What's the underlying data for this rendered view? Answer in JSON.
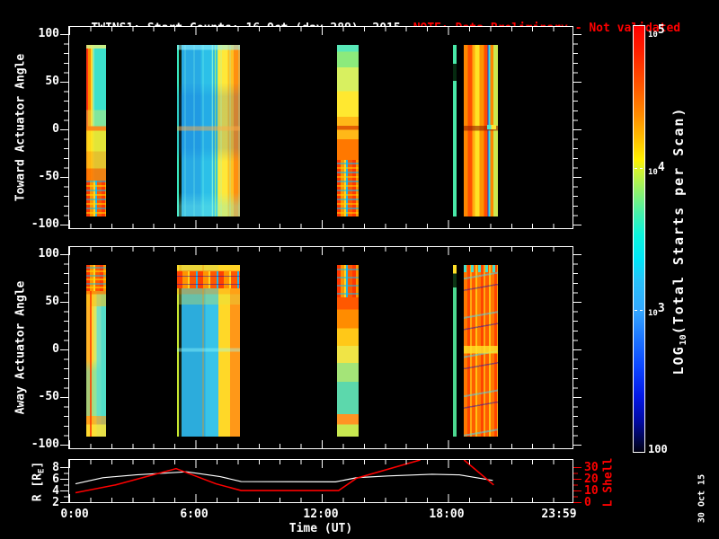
{
  "title": {
    "main": "TWINS1: Start Counts: 16 Oct (day 289), 2015",
    "note": "NOTE: Data Preliminary - Not validated"
  },
  "colors": {
    "background": "#000000",
    "foreground": "#ffffff",
    "note_red": "#ff0000",
    "r_line": "#ffffff",
    "lshell_line": "#ff0000"
  },
  "panels": {
    "toward": {
      "ylabel": "Toward Actuator Angle",
      "yticks": [
        "100",
        "50",
        "0",
        "-50",
        "-100"
      ]
    },
    "away": {
      "ylabel": "Away Actuator Angle",
      "yticks": [
        "100",
        "50",
        "0",
        "-50",
        "-100"
      ]
    },
    "orbit": {
      "left_label_pre": "R [R",
      "left_label_sub": "E",
      "left_label_post": "]",
      "left_ticks": [
        "8",
        "6",
        "4",
        "2"
      ],
      "right_label": "L Shell",
      "right_ticks": [
        "30",
        "20",
        "10",
        "0"
      ]
    }
  },
  "xaxis": {
    "label": "Time (UT)",
    "ticks": [
      "0:00",
      "6:00",
      "12:00",
      "18:00",
      "23:59"
    ]
  },
  "colorbar": {
    "label_pre": "LOG",
    "label_sub": "10",
    "label_post": "(Total Starts per Scan)",
    "tick_labels": [
      {
        "base": "10",
        "exp": "5"
      },
      {
        "base": "10",
        "exp": "4"
      },
      {
        "base": "10",
        "exp": "3"
      },
      {
        "base": "100",
        "exp": ""
      }
    ]
  },
  "datestamp": "30 Oct 15",
  "chart_data": [
    {
      "type": "heatmap",
      "panel": "toward",
      "ylabel": "Toward Actuator Angle",
      "ylim": [
        -100,
        100
      ],
      "xlim_hours": [
        0,
        24
      ],
      "angle_extent_deg": [
        -90,
        90
      ],
      "value_scale": "LOG10(Total Starts per Scan), 100 to 1e5, rainbow colormap",
      "intervals": [
        {
          "start": "0:49",
          "end": "1:45",
          "start_h": 0.81,
          "end_h": 1.75,
          "style": "bt1",
          "description": "red-orange left edge, cyan-green upper half, yellow-orange lower half, chaotic mixed scatter below -50 deg"
        },
        {
          "start": "5:07",
          "end": "8:07",
          "start_h": 5.12,
          "end_h": 8.11,
          "style": "bt2",
          "description": "broad cyan-blue block (~1e3-3e3), yellow-orange striped right edge (~1e4), warm line at 0 deg"
        },
        {
          "start": "12:43",
          "end": "13:45",
          "start_h": 12.72,
          "end_h": 13.75,
          "style": "bt3",
          "description": "green top grading to orange-red bottom, chaotic scatter below -30 deg"
        },
        {
          "start": "18:14",
          "end": "18:24",
          "start_h": 18.23,
          "end_h": 18.4,
          "style": "bt4s",
          "description": "thin cyan-green stripe with dark gap near +70 deg"
        },
        {
          "start": "18:45",
          "end": "20:22",
          "start_h": 18.75,
          "end_h": 20.37,
          "style": "bt4",
          "description": "orange/red/yellow vertical stripes (~3e4-1e5) with narrow blue and cyan lanes, dark red line at 0 deg"
        }
      ]
    },
    {
      "type": "heatmap",
      "panel": "away",
      "ylabel": "Away Actuator Angle",
      "ylim": [
        -100,
        100
      ],
      "xlim_hours": [
        0,
        24
      ],
      "angle_extent_deg": [
        -90,
        90
      ],
      "value_scale": "LOG10(Total Starts per Scan), 100 to 1e5, rainbow colormap",
      "intervals": [
        {
          "start": "0:49",
          "end": "1:45",
          "start_h": 0.81,
          "end_h": 1.75,
          "style": "ba1",
          "description": "chaotic red-orange top above +60 deg, yellow left edge with thin red line, cyan lower body, yellow bottom edge"
        },
        {
          "start": "5:07",
          "end": "8:07",
          "start_h": 5.12,
          "end_h": 8.11,
          "style": "ba2",
          "description": "red-orange chaotic cap above +60 deg, cyan-blue main body, yellow-orange striped right edge, thin orange vertical lane mid-block"
        },
        {
          "start": "12:43",
          "end": "13:45",
          "start_h": 12.72,
          "end_h": 13.75,
          "style": "ba3",
          "description": "checkered cap on top, solid orange-red upper half grading to green-cyan lower half, orange band near -80 deg"
        },
        {
          "start": "18:14",
          "end": "18:24",
          "start_h": 18.23,
          "end_h": 18.4,
          "style": "ba4s",
          "description": "thin stripe: yellow tip, dark gap, green-cyan below"
        },
        {
          "start": "18:45",
          "end": "20:22",
          "start_h": 18.75,
          "end_h": 20.37,
          "style": "ba4",
          "description": "dense orange-red vertical stripes with cyan/dark-blue speckles, yellow band at 0 deg"
        }
      ]
    },
    {
      "type": "line",
      "xlabel": "Time (UT)",
      "x_range_hours": [
        0,
        24
      ],
      "left_axis": {
        "label": "R [RE]",
        "ticks": [
          2,
          4,
          6,
          8
        ],
        "color": "#ffffff"
      },
      "right_axis": {
        "label": "L Shell",
        "ticks": [
          0,
          10,
          20,
          30
        ],
        "color": "#ff0000"
      },
      "series": [
        {
          "name": "R [RE]",
          "color": "#ffffff",
          "points": [
            [
              0.3,
              5.2
            ],
            [
              1.6,
              6.3
            ],
            [
              3.2,
              6.8
            ],
            [
              5.6,
              7.35
            ],
            [
              7.2,
              6.5
            ],
            [
              8.2,
              5.6
            ],
            [
              12.7,
              5.55
            ],
            [
              13.7,
              6.3
            ],
            [
              15.2,
              6.6
            ],
            [
              17.3,
              6.9
            ],
            [
              18.6,
              6.8
            ],
            [
              20.2,
              5.8
            ]
          ]
        },
        {
          "name": "L Shell",
          "color": "#ff0000",
          "points": [
            [
              0.3,
              8
            ],
            [
              2.2,
              15
            ],
            [
              5.1,
              29.5
            ],
            [
              7.0,
              16
            ],
            [
              8.2,
              10
            ],
            [
              12.85,
              10
            ],
            [
              13.7,
              21
            ],
            [
              16.74,
              37.3
            ]
          ],
          "points2": [
            [
              18.83,
              37.3
            ],
            [
              20.24,
              15
            ]
          ],
          "note": "curve exceeds top of axis (off-scale) between ~16:45 and ~18:50"
        }
      ]
    }
  ]
}
